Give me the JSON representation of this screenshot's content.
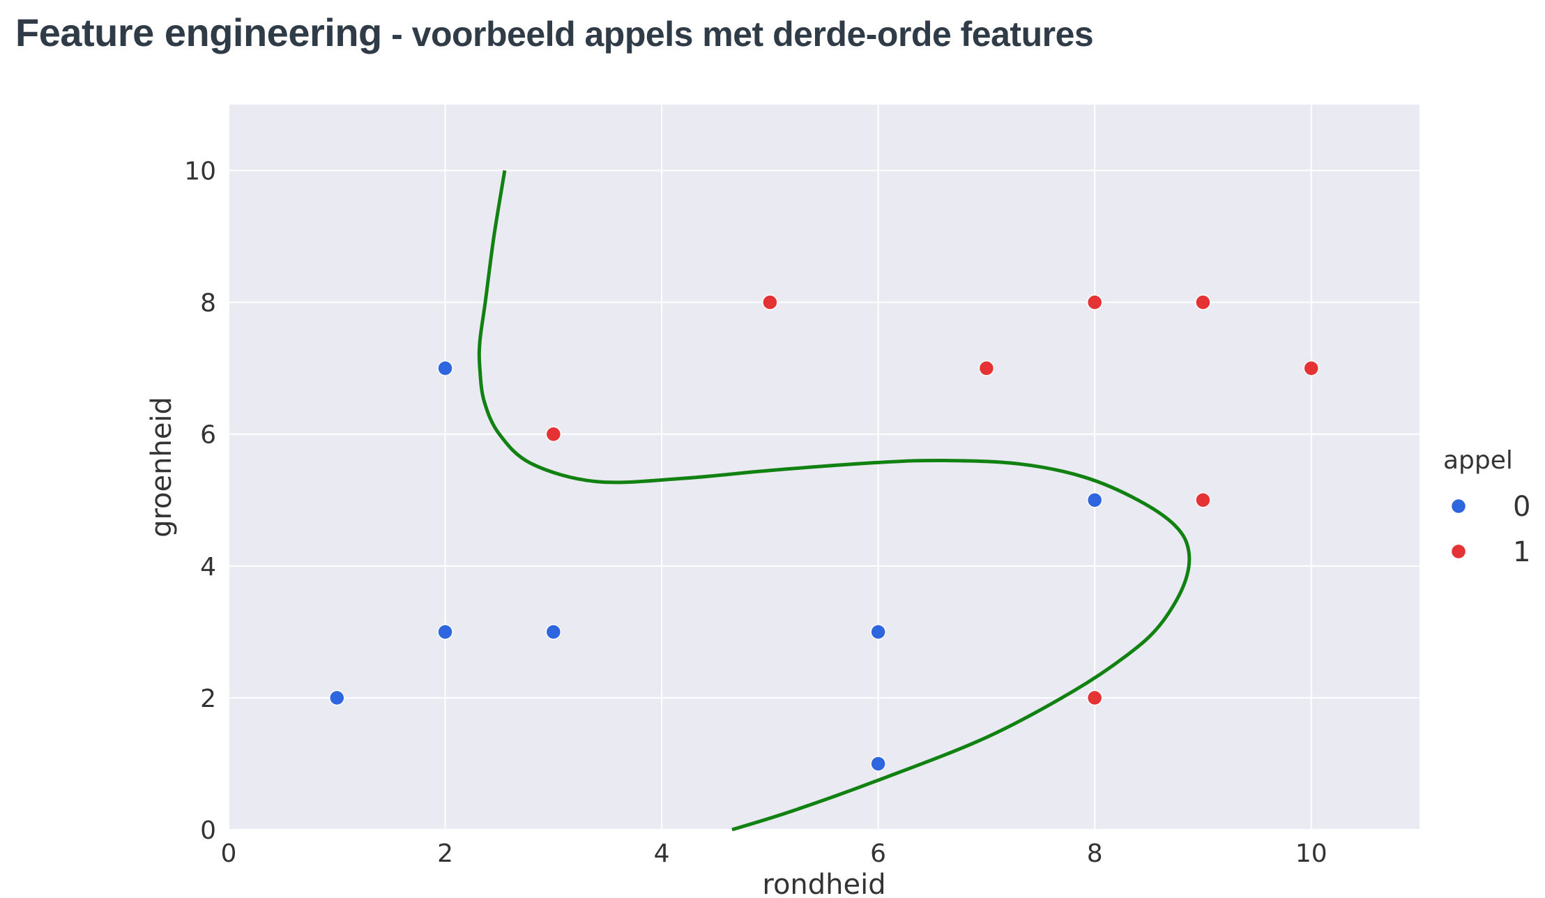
{
  "header": {
    "title_main": "Feature engineering",
    "title_sub": " - voorbeeld appels met derde-orde features"
  },
  "colors": {
    "plot_background": "#eaeaf2",
    "grid": "#ffffff",
    "class_0": "#2e66e0",
    "class_1": "#e53234",
    "boundary": "#118211",
    "text": "#333333",
    "title": "#2f3b47"
  },
  "chart_data": {
    "type": "scatter",
    "xlabel": "rondheid",
    "ylabel": "groenheid",
    "xlim": [
      0,
      11
    ],
    "ylim": [
      0,
      11
    ],
    "xticks": [
      0,
      2,
      4,
      6,
      8,
      10
    ],
    "yticks": [
      0,
      2,
      4,
      6,
      8,
      10
    ],
    "grid": true,
    "legend": {
      "title": "appel",
      "position": "right",
      "entries": [
        "0",
        "1"
      ]
    },
    "series": [
      {
        "name": "0",
        "color": "#2e66e0",
        "points": [
          [
            1,
            2
          ],
          [
            2,
            3
          ],
          [
            2,
            7
          ],
          [
            3,
            3
          ],
          [
            6,
            3
          ],
          [
            6,
            1
          ],
          [
            8,
            5
          ]
        ]
      },
      {
        "name": "1",
        "color": "#e53234",
        "points": [
          [
            3,
            6
          ],
          [
            5,
            8
          ],
          [
            7,
            7
          ],
          [
            8,
            8
          ],
          [
            9,
            8
          ],
          [
            10,
            7
          ],
          [
            9,
            5
          ],
          [
            8,
            2
          ]
        ]
      }
    ],
    "decision_boundary": {
      "color": "#118211",
      "points": [
        [
          2.55,
          10
        ],
        [
          2.45,
          9
        ],
        [
          2.37,
          8
        ],
        [
          2.32,
          7.4
        ],
        [
          2.32,
          7
        ],
        [
          2.36,
          6.5
        ],
        [
          2.5,
          6.0
        ],
        [
          2.8,
          5.55
        ],
        [
          3.4,
          5.28
        ],
        [
          4.2,
          5.33
        ],
        [
          5.0,
          5.45
        ],
        [
          6.0,
          5.57
        ],
        [
          6.6,
          5.6
        ],
        [
          7.3,
          5.55
        ],
        [
          7.9,
          5.35
        ],
        [
          8.4,
          5.0
        ],
        [
          8.75,
          4.6
        ],
        [
          8.87,
          4.2
        ],
        [
          8.82,
          3.7
        ],
        [
          8.6,
          3.1
        ],
        [
          8.3,
          2.65
        ],
        [
          7.8,
          2.1
        ],
        [
          7.0,
          1.4
        ],
        [
          6.0,
          0.75
        ],
        [
          5.2,
          0.28
        ],
        [
          4.65,
          0
        ]
      ]
    }
  }
}
